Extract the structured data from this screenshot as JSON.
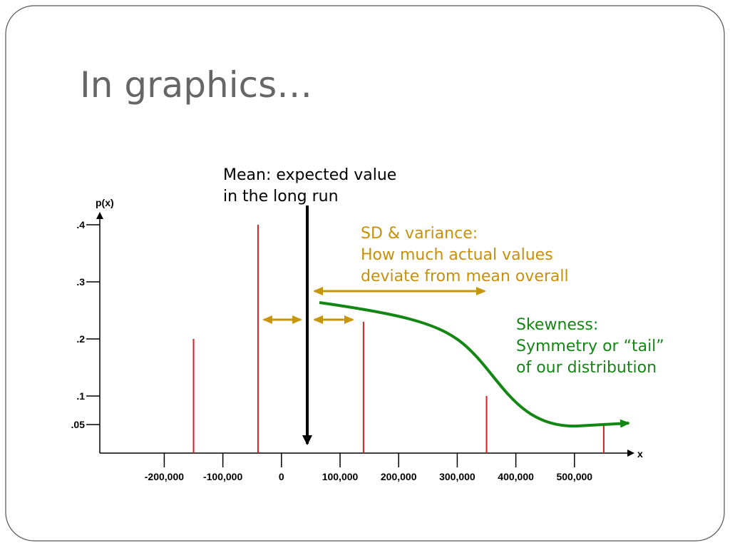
{
  "title": "In graphics…",
  "chart_data": {
    "type": "stem",
    "x": [
      -150000,
      -40000,
      140000,
      350000,
      550000
    ],
    "values": [
      0.2,
      0.4,
      0.23,
      0.1,
      0.05
    ],
    "color": "#e41a1c",
    "xlim": [
      -310000,
      600000
    ],
    "ylim": [
      0,
      0.42
    ],
    "xticks": [
      {
        "value": -200000,
        "label": "-200,000"
      },
      {
        "value": -100000,
        "label": "-100,000"
      },
      0,
      {
        "value": 100000,
        "label": "100,000"
      },
      {
        "value": 200000,
        "label": "200,000"
      },
      {
        "value": 300000,
        "label": "300,000"
      },
      {
        "value": 400000,
        "label": "400,000"
      },
      {
        "value": 500000,
        "label": "500,000"
      }
    ],
    "yticks": [
      {
        "value": 0.05,
        "label": ".05"
      },
      {
        "value": 0.1,
        "label": ".1"
      },
      {
        "value": 0.2,
        "label": ".2"
      },
      {
        "value": 0.3,
        "label": ".3"
      },
      {
        "value": 0.4,
        "label": ".4"
      }
    ],
    "x_label": "x",
    "y_label": "p(x)",
    "annotations": [
      [
        "Mean: expected value",
        "in the long run"
      ],
      [
        "SD & variance:",
        "How much actual values",
        "deviate from mean overall"
      ],
      [
        "Skewness:",
        "Symmetry or “tail”",
        "of our distribution"
      ]
    ]
  }
}
